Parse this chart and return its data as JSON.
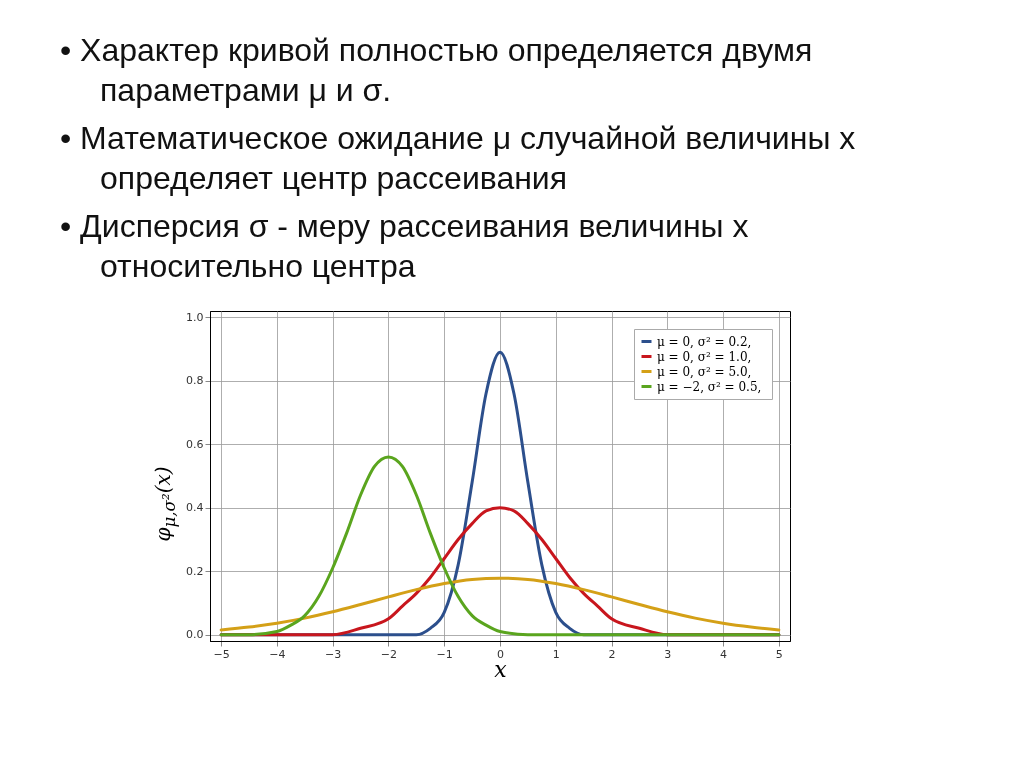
{
  "chart_data": {
    "type": "line",
    "annotations": [
      "• Характер кривой полностью определяется двумя параметрами μ и σ.",
      "• Математическое ожидание μ случайной величины x определяет центр рассеивания",
      "• Дисперсия σ - меру рассеивания величины x относительно центра"
    ],
    "xlabel": "x",
    "ylabel": "φ$_{μ,σ²}$(x)",
    "xlim": [
      -5.2,
      5.2
    ],
    "xticks": [
      {
        "value": -5,
        "label": "−5"
      },
      {
        "value": -4,
        "label": "−4"
      },
      {
        "value": -3,
        "label": "−3"
      },
      {
        "value": -2,
        "label": "−2"
      },
      {
        "value": -1,
        "label": "−1"
      },
      0,
      1,
      2,
      3,
      4,
      5
    ],
    "ylim": [
      -0.02,
      1.02
    ],
    "yticks": [
      {
        "value": 0,
        "label": "0.0"
      },
      {
        "value": 0.2,
        "label": "0.2"
      },
      {
        "value": 0.4,
        "label": "0.4"
      },
      {
        "value": 0.6,
        "label": "0.6"
      },
      {
        "value": 0.8,
        "label": "0.8"
      },
      {
        "value": 1,
        "label": "1.0"
      }
    ],
    "grid": true,
    "legend": "top right",
    "line_style": "solid",
    "series": [
      {
        "name": "μ = 0,   σ² = 0.2,",
        "color": "#2c4f8c",
        "x": [
          -5,
          -2,
          -1.5,
          -1.25,
          -1,
          -0.75,
          -0.5,
          -0.25,
          0,
          0.25,
          0.5,
          0.75,
          1,
          1.25,
          1.5,
          2,
          5
        ],
        "values": [
          0,
          0,
          0,
          0.02,
          0.07,
          0.22,
          0.48,
          0.76,
          0.89,
          0.76,
          0.48,
          0.22,
          0.07,
          0.02,
          0,
          0,
          0
        ]
      },
      {
        "name": "μ = 0,   σ² = 1.0,",
        "color": "#c8161d",
        "x": [
          -5,
          -3,
          -2.5,
          -2,
          -1.75,
          -1.5,
          -1.25,
          -1,
          -0.75,
          -0.5,
          -0.25,
          0,
          0.25,
          0.5,
          0.75,
          1,
          1.25,
          1.5,
          1.75,
          2,
          2.5,
          3,
          5
        ],
        "values": [
          0,
          0,
          0.02,
          0.05,
          0.09,
          0.13,
          0.18,
          0.24,
          0.3,
          0.35,
          0.39,
          0.4,
          0.39,
          0.35,
          0.3,
          0.24,
          0.18,
          0.13,
          0.09,
          0.05,
          0.02,
          0,
          0
        ]
      },
      {
        "name": "μ = 0,   σ² = 5.0,",
        "color": "#d4a017",
        "x": [
          -5,
          -4.5,
          -4,
          -3.5,
          -3,
          -2.5,
          -2,
          -1.5,
          -1,
          -0.5,
          0,
          0.5,
          1,
          1.5,
          2,
          2.5,
          3,
          3.5,
          4,
          4.5,
          5
        ],
        "values": [
          0.015,
          0.024,
          0.036,
          0.052,
          0.072,
          0.095,
          0.119,
          0.142,
          0.161,
          0.174,
          0.178,
          0.174,
          0.161,
          0.142,
          0.119,
          0.095,
          0.072,
          0.052,
          0.036,
          0.024,
          0.015
        ]
      },
      {
        "name": "μ = −2,  σ² = 0.5,",
        "color": "#5aa51e",
        "x": [
          -5,
          -4.5,
          -4,
          -3.75,
          -3.5,
          -3.25,
          -3,
          -2.75,
          -2.5,
          -2.25,
          -2,
          -1.75,
          -1.5,
          -1.25,
          -1,
          -0.75,
          -0.5,
          -0.25,
          0,
          0.5,
          1,
          5
        ],
        "values": [
          0,
          0,
          0.01,
          0.03,
          0.06,
          0.12,
          0.21,
          0.32,
          0.44,
          0.53,
          0.56,
          0.53,
          0.44,
          0.32,
          0.21,
          0.12,
          0.06,
          0.03,
          0.01,
          0,
          0,
          0
        ]
      }
    ]
  }
}
